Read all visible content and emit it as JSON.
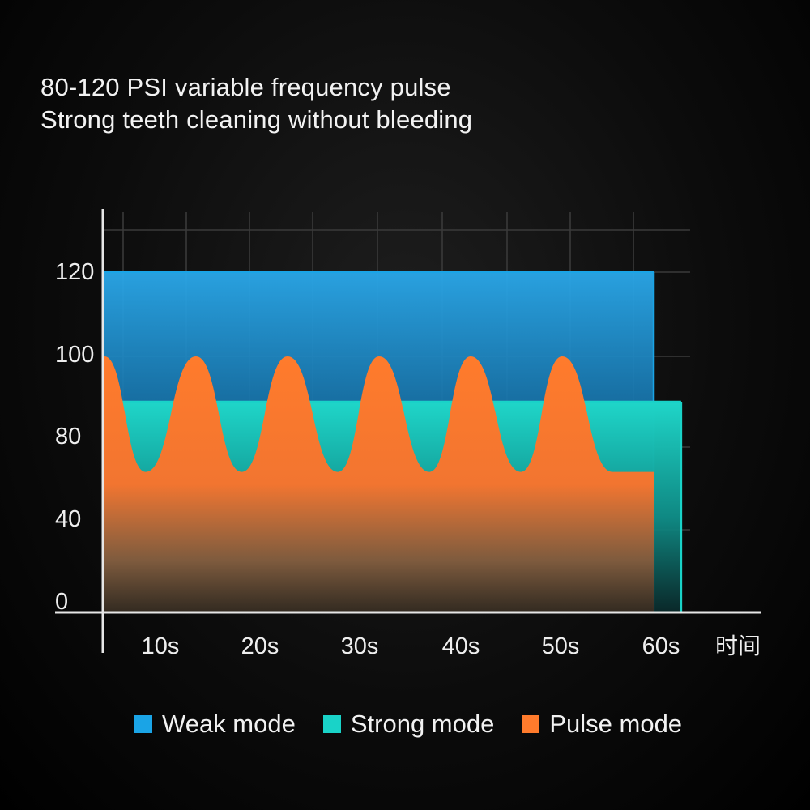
{
  "heading": {
    "line1": "80-120 PSI variable frequency pulse",
    "line2": "Strong teeth cleaning without bleeding"
  },
  "chart_data": {
    "type": "area",
    "title": "",
    "xlabel": "时间",
    "ylabel": "",
    "x_tick_labels": [
      "10s",
      "20s",
      "30s",
      "40s",
      "50s",
      "60s"
    ],
    "x_unit": "s",
    "y_tick_labels": [
      "0",
      "40",
      "80",
      "100",
      "120"
    ],
    "grid": true,
    "legend_position": "bottom",
    "series": [
      {
        "name": "Weak mode",
        "color": "#1aa4e6",
        "shape": "constant",
        "value": 120,
        "x_range": [
          0,
          60
        ]
      },
      {
        "name": "Strong mode",
        "color": "#19d3c8",
        "shape": "constant",
        "value": 90,
        "x_range": [
          0,
          63
        ]
      },
      {
        "name": "Pulse mode",
        "color": "#ff7b2c",
        "shape": "pulse",
        "min": 68,
        "max": 100,
        "x_range": [
          0,
          60
        ],
        "peaks_x": [
          0,
          10,
          20,
          30,
          40,
          50
        ],
        "troughs_x": [
          4.5,
          15,
          25.5,
          35.5,
          45.5,
          55.5
        ]
      }
    ]
  },
  "legend": [
    {
      "label": "Weak mode",
      "color": "#1aa4e6"
    },
    {
      "label": "Strong mode",
      "color": "#19d3c8"
    },
    {
      "label": "Pulse mode",
      "color": "#ff7b2c"
    }
  ]
}
